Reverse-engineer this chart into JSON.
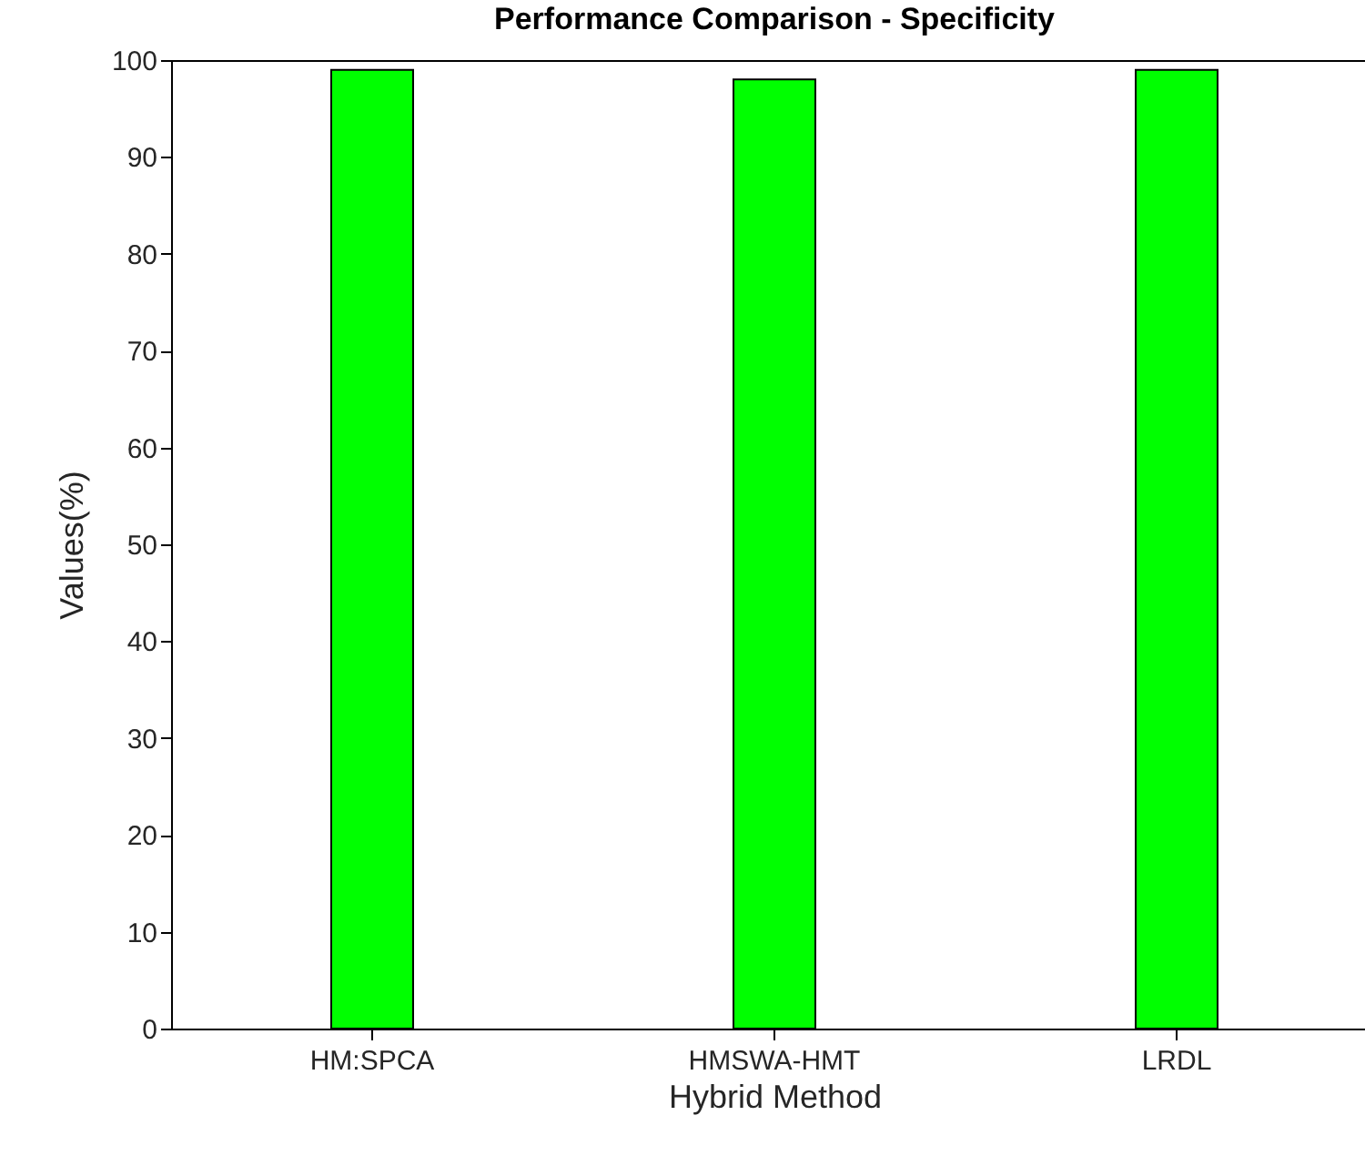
{
  "chart_data": {
    "type": "bar",
    "title": "Performance Comparison - Specificity",
    "xlabel": "Hybrid Method",
    "ylabel": "Values(%)",
    "categories": [
      "HM:SPCA",
      "HMSWA-HMT",
      "LRDL"
    ],
    "values": [
      99,
      98,
      99
    ],
    "color": "#00ff00",
    "ylim": [
      0,
      100
    ],
    "yticks": [
      0,
      10,
      20,
      30,
      40,
      50,
      60,
      70,
      80,
      90,
      100
    ],
    "grid": false
  }
}
